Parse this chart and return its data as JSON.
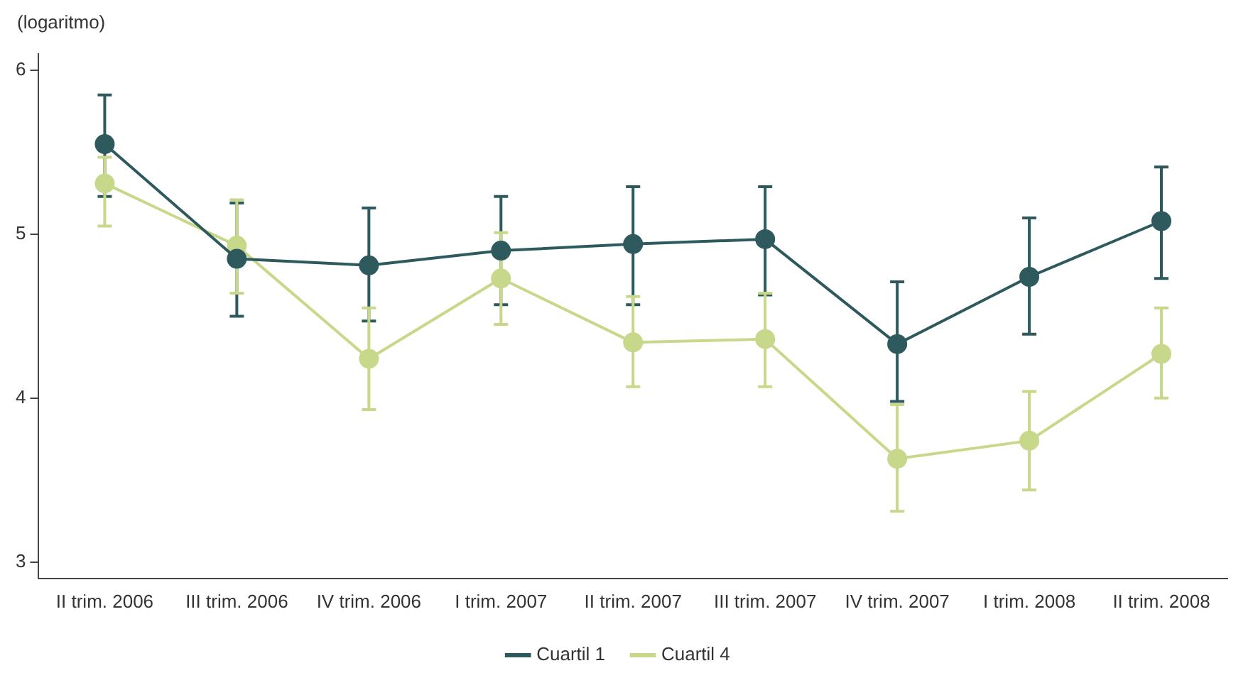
{
  "chart_data": {
    "type": "line",
    "ylabel": "(logaritmo)",
    "categories": [
      "II trim. 2006",
      "III trim. 2006",
      "IV trim. 2006",
      "I trim. 2007",
      "II trim. 2007",
      "III trim. 2007",
      "IV trim. 2007",
      "I trim. 2008",
      "II trim. 2008"
    ],
    "series": [
      {
        "name": "Cuartil 1",
        "color": "#2e5a5e",
        "values": [
          5.55,
          4.85,
          4.81,
          4.9,
          4.94,
          4.97,
          4.33,
          4.74,
          5.08
        ],
        "errors": [
          [
            5.23,
            5.85
          ],
          [
            4.5,
            5.19
          ],
          [
            4.47,
            5.16
          ],
          [
            4.57,
            5.23
          ],
          [
            4.57,
            5.29
          ],
          [
            4.63,
            5.29
          ],
          [
            3.98,
            4.71
          ],
          [
            4.39,
            5.1
          ],
          [
            4.73,
            5.41
          ]
        ]
      },
      {
        "name": "Cuartil 4",
        "color": "#c8d88a",
        "values": [
          5.31,
          4.93,
          4.24,
          4.73,
          4.34,
          4.36,
          3.63,
          3.74,
          4.27
        ],
        "errors": [
          [
            5.05,
            5.47
          ],
          [
            4.64,
            5.21
          ],
          [
            3.93,
            4.55
          ],
          [
            4.45,
            5.01
          ],
          [
            4.07,
            4.62
          ],
          [
            4.07,
            4.64
          ],
          [
            3.31,
            3.96
          ],
          [
            3.44,
            4.04
          ],
          [
            4,
            4.55
          ]
        ]
      }
    ],
    "ylim": [
      2.9,
      6.1
    ],
    "yticks": [
      3,
      4,
      5,
      6
    ],
    "grid": false,
    "legend": "bottom",
    "marker": "circle",
    "line_style": "solid"
  }
}
